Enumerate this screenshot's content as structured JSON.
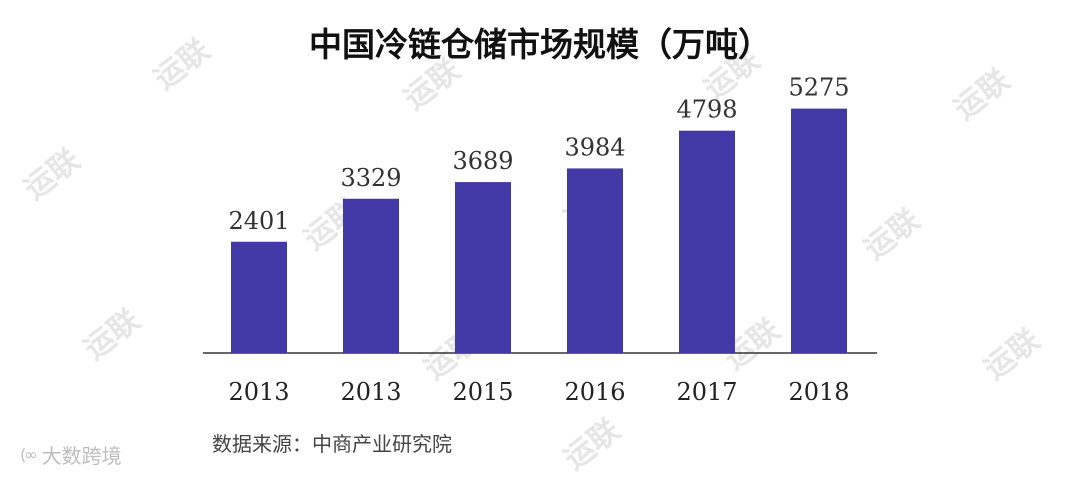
{
  "watermark_text": "运联",
  "logo": {
    "mark": "(∞",
    "text": "大数跨境"
  },
  "source_text": "数据来源：中商产业研究院",
  "chart_data": {
    "type": "bar",
    "title": "中国冷链仓储市场规模（万吨）",
    "categories": [
      "2013",
      "2013",
      "2015",
      "2016",
      "2017",
      "2018"
    ],
    "values": [
      2401,
      3329,
      3689,
      3984,
      4798,
      5275
    ],
    "data_labels": [
      "2401",
      "3329",
      "3689",
      "3984",
      "4798",
      "5275"
    ],
    "ylim": [
      0,
      6000
    ],
    "bar_color": "#4239a6",
    "grid": false,
    "legend": "none"
  }
}
